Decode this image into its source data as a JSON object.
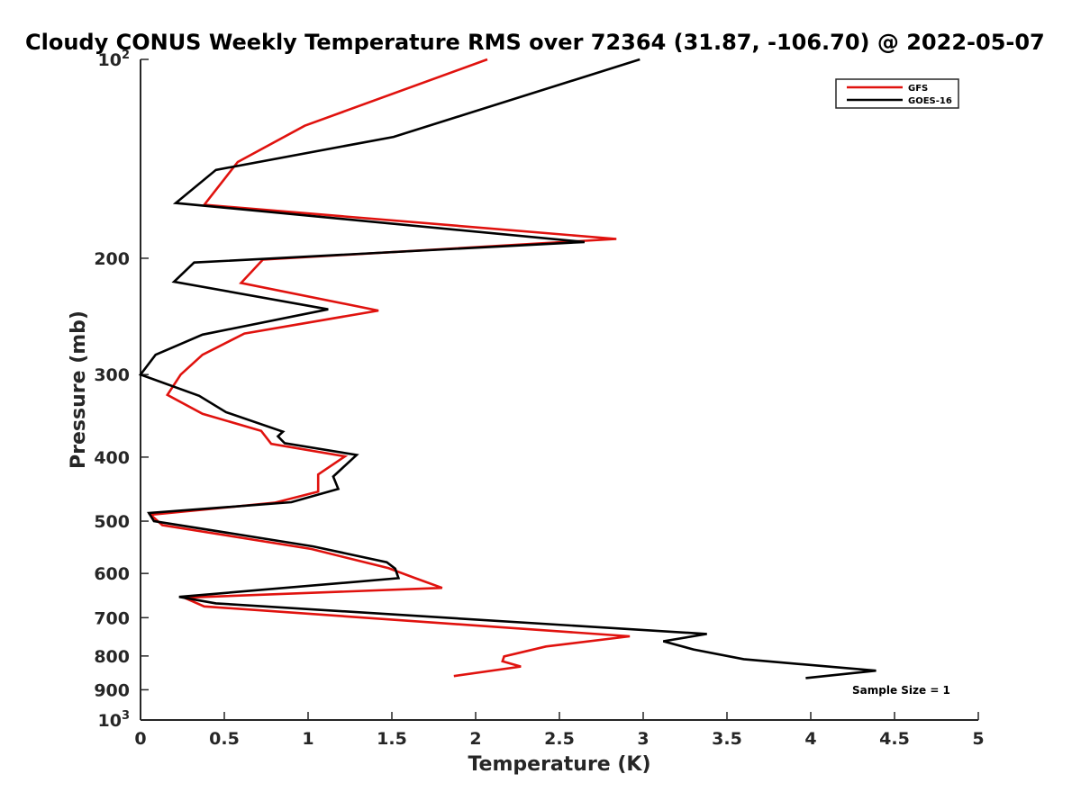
{
  "chart_data": {
    "type": "line",
    "title": "Cloudy CONUS Weekly Temperature RMS over 72364 (31.87, -106.70) @ 2022-05-07",
    "xlabel": "Temperature (K)",
    "ylabel": "Pressure (mb)",
    "xlim": [
      0,
      5
    ],
    "ylim": [
      100,
      1000
    ],
    "y_scale": "log",
    "y_reversed": true,
    "grid": false,
    "legend_position": "top-right",
    "x_ticks": [
      "0",
      "0.5",
      "1",
      "1.5",
      "2",
      "2.5",
      "3",
      "3.5",
      "4",
      "4.5",
      "5"
    ],
    "y_ticks": [
      {
        "value": 100,
        "base": "10",
        "exp": "2"
      },
      {
        "value": 200,
        "label": "200"
      },
      {
        "value": 300,
        "label": "300"
      },
      {
        "value": 400,
        "label": "400"
      },
      {
        "value": 500,
        "label": "500"
      },
      {
        "value": 600,
        "label": "600"
      },
      {
        "value": 700,
        "label": "700"
      },
      {
        "value": 800,
        "label": "800"
      },
      {
        "value": 900,
        "label": "900"
      },
      {
        "value": 1000,
        "base": "10",
        "exp": "3"
      }
    ],
    "series": [
      {
        "name": "GFS",
        "color": "#e0120e",
        "points": [
          [
            2.07,
            100
          ],
          [
            0.98,
            126
          ],
          [
            0.58,
            143
          ],
          [
            0.38,
            166
          ],
          [
            2.84,
            187
          ],
          [
            0.73,
            201
          ],
          [
            0.6,
            218
          ],
          [
            1.42,
            240
          ],
          [
            0.62,
            260
          ],
          [
            0.37,
            280
          ],
          [
            0.24,
            300
          ],
          [
            0.16,
            322
          ],
          [
            0.37,
            344
          ],
          [
            0.72,
            365
          ],
          [
            0.78,
            382
          ],
          [
            1.22,
            399
          ],
          [
            1.06,
            425
          ],
          [
            1.06,
            451
          ],
          [
            0.8,
            469
          ],
          [
            0.06,
            489
          ],
          [
            0.13,
            507
          ],
          [
            1.02,
            551
          ],
          [
            1.48,
            589
          ],
          [
            1.64,
            610
          ],
          [
            1.8,
            631
          ],
          [
            0.26,
            653
          ],
          [
            0.38,
            673
          ],
          [
            2.92,
            747
          ],
          [
            2.42,
            774
          ],
          [
            2.17,
            801
          ],
          [
            2.16,
            815
          ],
          [
            2.27,
            830
          ],
          [
            1.87,
            858
          ]
        ]
      },
      {
        "name": "GOES-16",
        "color": "#000000",
        "points": [
          [
            2.98,
            100
          ],
          [
            1.51,
            131
          ],
          [
            0.45,
            147
          ],
          [
            0.21,
            165
          ],
          [
            2.65,
            189
          ],
          [
            0.32,
            203
          ],
          [
            0.2,
            217
          ],
          [
            1.12,
            239
          ],
          [
            0.37,
            261
          ],
          [
            0.09,
            280
          ],
          [
            0.0,
            300
          ],
          [
            0.35,
            323
          ],
          [
            0.51,
            342
          ],
          [
            0.85,
            366
          ],
          [
            0.82,
            372
          ],
          [
            0.86,
            381
          ],
          [
            1.29,
            397
          ],
          [
            1.15,
            428
          ],
          [
            1.18,
            447
          ],
          [
            0.9,
            468
          ],
          [
            0.05,
            486
          ],
          [
            0.08,
            500
          ],
          [
            1.03,
            546
          ],
          [
            1.47,
            577
          ],
          [
            1.52,
            590
          ],
          [
            1.54,
            610
          ],
          [
            0.23,
            651
          ],
          [
            0.45,
            666
          ],
          [
            3.38,
            741
          ],
          [
            3.12,
            760
          ],
          [
            3.3,
            782
          ],
          [
            3.6,
            809
          ],
          [
            4.39,
            842
          ],
          [
            3.97,
            864
          ]
        ]
      }
    ],
    "annotations": [
      "Sample Size = 1"
    ]
  }
}
